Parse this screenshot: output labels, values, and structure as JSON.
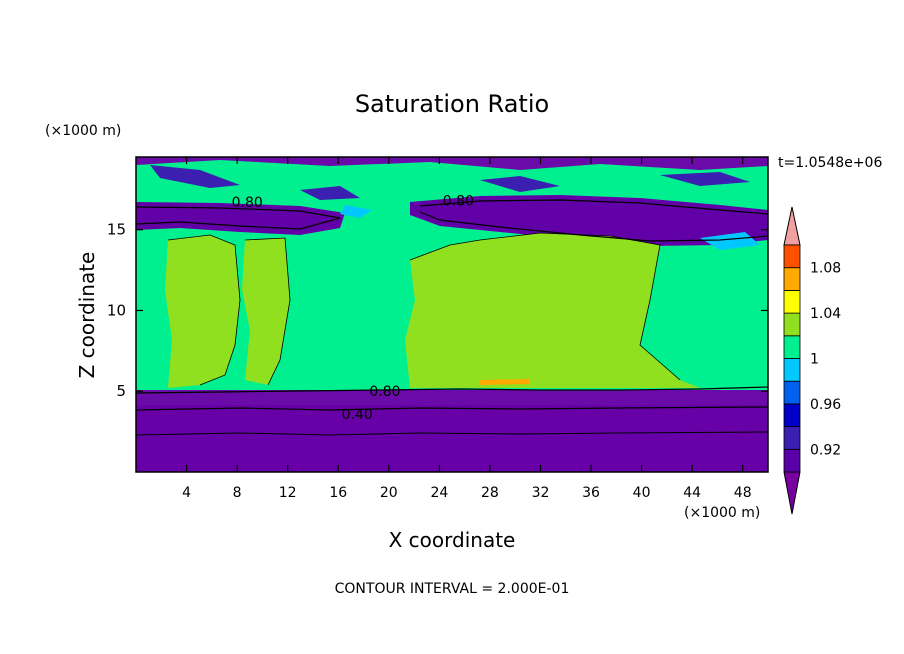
{
  "chart_data": {
    "type": "heatmap",
    "title": "Saturation Ratio",
    "xlabel": "X coordinate",
    "ylabel": "Z coordinate",
    "x_unit": "(×1000 m)",
    "y_unit": "(×1000 m)",
    "time_label": "t=1.0548e+06",
    "footer": "CONTOUR INTERVAL = 2.000E-01",
    "xlim": [
      0,
      50
    ],
    "ylim": [
      0,
      19.5
    ],
    "x_ticks": [
      4,
      8,
      12,
      16,
      20,
      24,
      28,
      32,
      36,
      40,
      44,
      48
    ],
    "y_ticks": [
      5,
      10,
      15
    ],
    "contour_labels": [
      {
        "text": "0.80",
        "x": 8.8,
        "z": 16.7
      },
      {
        "text": "0.80",
        "x": 25.5,
        "z": 16.8
      },
      {
        "text": "0.80",
        "x": 19.7,
        "z": 5.0
      },
      {
        "text": "0.40",
        "x": 17.5,
        "z": 3.6
      }
    ],
    "colorbar": {
      "levels": [
        0.9,
        0.92,
        0.94,
        0.96,
        0.98,
        1.0,
        1.02,
        1.04,
        1.06,
        1.08,
        1.1
      ],
      "colors": [
        "#5a00a8",
        "#3a1fb0",
        "#0000c8",
        "#0060f0",
        "#00c8ff",
        "#00f090",
        "#90e020",
        "#ffff00",
        "#ffaa00",
        "#ff5000",
        "#ff2020"
      ],
      "under_color": "#7800a0",
      "over_color": "#f0a0a0",
      "tick_labels": [
        "0.92",
        "0.96",
        "1",
        "1.04",
        "1.08"
      ],
      "tick_values": [
        0.92,
        0.96,
        1.0,
        1.04,
        1.08
      ]
    }
  }
}
